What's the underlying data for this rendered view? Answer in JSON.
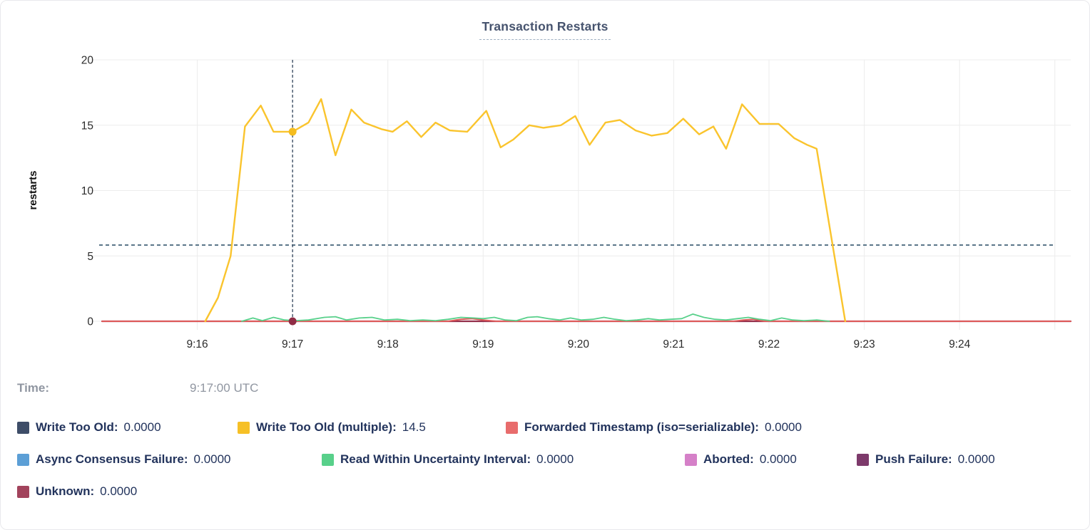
{
  "title": {
    "text": "Transaction Restarts"
  },
  "tooltip": {
    "time_label": "Time:",
    "time_value": "9:17:00 UTC"
  },
  "legend": {
    "rows": [
      [
        {
          "label": "Write Too Old:",
          "value": "0.0000",
          "color": "#3E4D68"
        },
        {
          "label": "Write Too Old (multiple):",
          "value": "14.5",
          "color": "#F6C026"
        },
        {
          "label": "Forwarded Timestamp (iso=serializable):",
          "value": "0.0000",
          "color": "#E86C6C"
        }
      ],
      [
        {
          "label": "Async Consensus Failure:",
          "value": "0.0000",
          "color": "#5C9FD6"
        },
        {
          "label": "Read Within Uncertainty Interval:",
          "value": "0.0000",
          "color": "#58D08A"
        },
        {
          "label": "Aborted:",
          "value": "0.0000",
          "color": "#D580C8"
        },
        {
          "label": "Push Failure:",
          "value": "0.0000",
          "color": "#7D3A6B"
        }
      ],
      [
        {
          "label": "Unknown:",
          "value": "0.0000",
          "color": "#A2435C"
        }
      ]
    ]
  },
  "chart_data": {
    "type": "line",
    "title": "Transaction Restarts",
    "xlabel": "",
    "ylabel": "restarts",
    "ylim": [
      0,
      20
    ],
    "yticks": [
      0,
      5,
      10,
      15,
      20
    ],
    "grid": true,
    "legend_position": "bottom",
    "x_unit": "seconds offset from 9:15:00 UTC",
    "x_domain": [
      0,
      610
    ],
    "xticks": [
      {
        "t": 60,
        "label": "9:16"
      },
      {
        "t": 120,
        "label": "9:17"
      },
      {
        "t": 180,
        "label": "9:18"
      },
      {
        "t": 240,
        "label": "9:19"
      },
      {
        "t": 300,
        "label": "9:20"
      },
      {
        "t": 360,
        "label": "9:21"
      },
      {
        "t": 420,
        "label": "9:22"
      },
      {
        "t": 480,
        "label": "9:23"
      },
      {
        "t": 540,
        "label": "9:24"
      }
    ],
    "crosshair": {
      "t": 120,
      "time_label": "9:17:00 UTC",
      "hover_value": 5.83,
      "vertical_color": "#3E5066",
      "horizontal_color": "#5B7689",
      "points": [
        {
          "series": "Write Too Old (multiple)",
          "value": 14.5,
          "color": "#F5BD1F"
        },
        {
          "series": "Unknown",
          "value": 0,
          "color": "#8F2C45"
        }
      ]
    },
    "series": [
      {
        "name": "Write Too Old",
        "color": "#3E4D68",
        "width": 1.6,
        "values": [
          [
            0,
            0
          ],
          [
            610,
            0
          ]
        ]
      },
      {
        "name": "Async Consensus Failure",
        "color": "#5C9FD6",
        "width": 1.6,
        "values": [
          [
            0,
            0
          ],
          [
            610,
            0
          ]
        ]
      },
      {
        "name": "Aborted",
        "color": "#D580C8",
        "width": 1.6,
        "values": [
          [
            0,
            0
          ],
          [
            610,
            0
          ]
        ]
      },
      {
        "name": "Push Failure",
        "color": "#7D3A6B",
        "width": 1.6,
        "values": [
          [
            0,
            0
          ],
          [
            610,
            0
          ]
        ]
      },
      {
        "name": "Unknown",
        "color": "#932F4B",
        "width": 2.2,
        "values": [
          [
            0,
            0
          ],
          [
            610,
            0
          ]
        ]
      },
      {
        "name": "Forwarded Timestamp (iso=serializable)",
        "color": "#DE5A5A",
        "width": 2,
        "values": [
          [
            0,
            0
          ],
          [
            218,
            0
          ],
          [
            226,
            0.15
          ],
          [
            233,
            0.2
          ],
          [
            240,
            0.1
          ],
          [
            248,
            0
          ],
          [
            398,
            0
          ],
          [
            404,
            0.1
          ],
          [
            410,
            0.15
          ],
          [
            417,
            0
          ],
          [
            610,
            0
          ]
        ]
      },
      {
        "name": "Read Within Uncertainty Interval",
        "color": "#58D08A",
        "width": 1.8,
        "values": [
          [
            88,
            0
          ],
          [
            95,
            0.25
          ],
          [
            101,
            0.05
          ],
          [
            108,
            0.3
          ],
          [
            115,
            0.1
          ],
          [
            122,
            0.05
          ],
          [
            130,
            0.1
          ],
          [
            140,
            0.3
          ],
          [
            147,
            0.35
          ],
          [
            154,
            0.1
          ],
          [
            162,
            0.25
          ],
          [
            170,
            0.3
          ],
          [
            178,
            0.1
          ],
          [
            186,
            0.15
          ],
          [
            194,
            0.05
          ],
          [
            202,
            0.1
          ],
          [
            210,
            0.05
          ],
          [
            218,
            0.15
          ],
          [
            226,
            0.3
          ],
          [
            234,
            0.25
          ],
          [
            240,
            0.2
          ],
          [
            247,
            0.3
          ],
          [
            254,
            0.1
          ],
          [
            261,
            0.05
          ],
          [
            268,
            0.3
          ],
          [
            274,
            0.35
          ],
          [
            281,
            0.2
          ],
          [
            288,
            0.1
          ],
          [
            295,
            0.25
          ],
          [
            302,
            0.1
          ],
          [
            309,
            0.15
          ],
          [
            316,
            0.3
          ],
          [
            323,
            0.15
          ],
          [
            330,
            0.05
          ],
          [
            337,
            0.1
          ],
          [
            344,
            0.2
          ],
          [
            351,
            0.1
          ],
          [
            358,
            0.15
          ],
          [
            365,
            0.2
          ],
          [
            372,
            0.55
          ],
          [
            379,
            0.3
          ],
          [
            386,
            0.15
          ],
          [
            393,
            0.1
          ],
          [
            400,
            0.2
          ],
          [
            407,
            0.3
          ],
          [
            414,
            0.15
          ],
          [
            421,
            0.05
          ],
          [
            428,
            0.25
          ],
          [
            435,
            0.1
          ],
          [
            442,
            0.05
          ],
          [
            450,
            0.1
          ],
          [
            458,
            0
          ]
        ]
      },
      {
        "name": "Write Too Old (multiple)",
        "color": "#FAC42D",
        "width": 2.4,
        "values": [
          [
            65,
            0
          ],
          [
            73,
            1.8
          ],
          [
            81,
            5.0
          ],
          [
            90,
            14.9
          ],
          [
            100,
            16.5
          ],
          [
            108,
            14.5
          ],
          [
            120,
            14.5
          ],
          [
            130,
            15.2
          ],
          [
            138,
            17.0
          ],
          [
            147,
            12.7
          ],
          [
            157,
            16.2
          ],
          [
            165,
            15.2
          ],
          [
            176,
            14.7
          ],
          [
            183,
            14.5
          ],
          [
            192,
            15.3
          ],
          [
            201,
            14.1
          ],
          [
            210,
            15.2
          ],
          [
            219,
            14.6
          ],
          [
            230,
            14.5
          ],
          [
            242,
            16.1
          ],
          [
            251,
            13.3
          ],
          [
            259,
            13.9
          ],
          [
            269,
            15.0
          ],
          [
            278,
            14.8
          ],
          [
            289,
            15.0
          ],
          [
            298,
            15.7
          ],
          [
            307,
            13.5
          ],
          [
            317,
            15.2
          ],
          [
            326,
            15.4
          ],
          [
            336,
            14.6
          ],
          [
            346,
            14.2
          ],
          [
            356,
            14.4
          ],
          [
            366,
            15.5
          ],
          [
            376,
            14.3
          ],
          [
            385,
            14.9
          ],
          [
            393,
            13.2
          ],
          [
            403,
            16.6
          ],
          [
            414,
            15.1
          ],
          [
            426,
            15.1
          ],
          [
            436,
            14.0
          ],
          [
            444,
            13.5
          ],
          [
            450,
            13.2
          ],
          [
            468,
            0
          ]
        ]
      }
    ]
  }
}
